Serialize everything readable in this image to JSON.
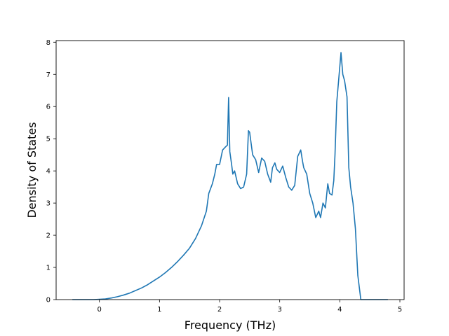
{
  "chart_data": {
    "type": "line",
    "title": "",
    "xlabel": "Frequency (THz)",
    "ylabel": "Density of States",
    "xlim": [
      -0.72,
      5.07
    ],
    "ylim": [
      0,
      8.05
    ],
    "xticks": [
      0,
      1,
      2,
      3,
      4,
      5
    ],
    "yticks": [
      0,
      1,
      2,
      3,
      4,
      5,
      6,
      7,
      8
    ],
    "grid": false,
    "legend": "none",
    "line_color": "#1f77b4",
    "series": [
      {
        "x": [
          -0.45,
          -0.1,
          0.0,
          0.1,
          0.2,
          0.3,
          0.4,
          0.5,
          0.6,
          0.7,
          0.8,
          0.9,
          1.0,
          1.1,
          1.2,
          1.3,
          1.4,
          1.5,
          1.6,
          1.7,
          1.78,
          1.82,
          1.88,
          1.92,
          1.95,
          2.0,
          2.05,
          2.1,
          2.13,
          2.15,
          2.17,
          2.2,
          2.22,
          2.25,
          2.3,
          2.35,
          2.4,
          2.45,
          2.48,
          2.5,
          2.55,
          2.6,
          2.65,
          2.7,
          2.75,
          2.8,
          2.85,
          2.88,
          2.92,
          2.95,
          3.0,
          3.05,
          3.1,
          3.15,
          3.2,
          3.25,
          3.3,
          3.35,
          3.38,
          3.4,
          3.45,
          3.5,
          3.55,
          3.6,
          3.65,
          3.68,
          3.72,
          3.76,
          3.8,
          3.83,
          3.87,
          3.9,
          3.92,
          3.95,
          3.98,
          4.02,
          4.05,
          4.08,
          4.12,
          4.15,
          4.18,
          4.22,
          4.26,
          4.3,
          4.35,
          4.4,
          4.8
        ],
        "values": [
          0.0,
          0.0,
          0.01,
          0.02,
          0.05,
          0.09,
          0.14,
          0.2,
          0.28,
          0.36,
          0.46,
          0.58,
          0.7,
          0.84,
          1.0,
          1.18,
          1.38,
          1.6,
          1.9,
          2.3,
          2.75,
          3.3,
          3.6,
          3.9,
          4.2,
          4.2,
          4.65,
          4.75,
          4.8,
          6.28,
          4.6,
          4.2,
          3.9,
          4.0,
          3.6,
          3.45,
          3.5,
          3.9,
          5.25,
          5.2,
          4.5,
          4.35,
          3.95,
          4.4,
          4.3,
          3.9,
          3.65,
          4.1,
          4.25,
          4.05,
          3.95,
          4.15,
          3.8,
          3.5,
          3.4,
          3.55,
          4.45,
          4.65,
          4.3,
          4.1,
          3.9,
          3.3,
          3.0,
          2.55,
          2.75,
          2.55,
          3.0,
          2.85,
          3.6,
          3.3,
          3.25,
          3.7,
          4.5,
          6.15,
          6.8,
          7.68,
          7.0,
          6.8,
          6.3,
          4.1,
          3.5,
          3.0,
          2.2,
          0.75,
          0.0,
          0.0,
          0.0
        ]
      }
    ]
  }
}
